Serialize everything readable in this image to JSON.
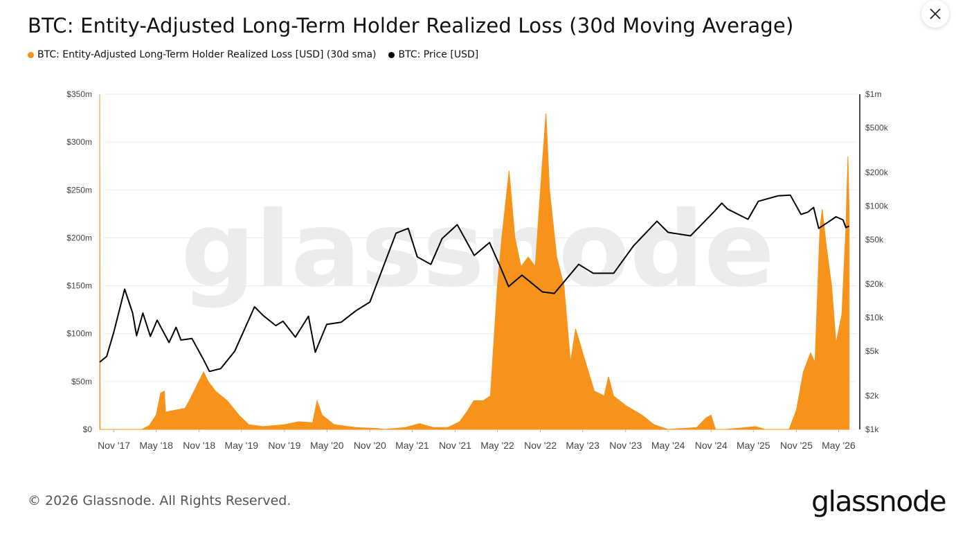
{
  "header": {
    "title": "BTC: Entity-Adjusted Long-Term Holder Realized Loss (30d Moving Average)",
    "close_icon": "close-icon"
  },
  "legend": [
    {
      "label": "BTC: Entity-Adjusted Long-Term Holder Realized Loss [USD] (30d sma)",
      "color": "#f7931a"
    },
    {
      "label": "BTC: Price [USD]",
      "color": "#000000"
    }
  ],
  "footer": {
    "copyright": "© 2026 Glassnode. All Rights Reserved.",
    "logo": "glassnode"
  },
  "chart_data": {
    "type": "area",
    "title": "BTC: Entity-Adjusted Long-Term Holder Realized Loss (30d Moving Average)",
    "watermark": "glassnode",
    "x_range": [
      "2017-09-01",
      "2026-07-01"
    ],
    "x_ticks": [
      "Nov '17",
      "May '18",
      "Nov '18",
      "May '19",
      "Nov '19",
      "May '20",
      "Nov '20",
      "May '21",
      "Nov '21",
      "May '22",
      "Nov '22",
      "May '23",
      "Nov '23",
      "May '24",
      "Nov '24",
      "May '25",
      "Nov '25",
      "May '26"
    ],
    "x_tick_dates": [
      "2017-11-01",
      "2018-05-01",
      "2018-11-01",
      "2019-05-01",
      "2019-11-01",
      "2020-05-01",
      "2020-11-01",
      "2021-05-01",
      "2021-11-01",
      "2022-05-01",
      "2022-11-01",
      "2023-05-01",
      "2023-11-01",
      "2024-05-01",
      "2024-11-01",
      "2025-05-01",
      "2025-11-01",
      "2026-05-01"
    ],
    "y_left": {
      "ticks": [
        "$0",
        "$50m",
        "$100m",
        "$150m",
        "$200m",
        "$250m",
        "$300m",
        "$350m"
      ],
      "tick_values": [
        0,
        50,
        100,
        150,
        200,
        250,
        300,
        350
      ],
      "ylim": [
        0,
        350
      ],
      "unit": "USD millions"
    },
    "y_right": {
      "scale": "log",
      "ticks": [
        "$1k",
        "$2k",
        "$5k",
        "$10k",
        "$20k",
        "$50k",
        "$100k",
        "$200k",
        "$500k",
        "$1m"
      ],
      "tick_values": [
        1000,
        2000,
        5000,
        10000,
        20000,
        50000,
        100000,
        200000,
        500000,
        1000000
      ],
      "ylim": [
        1000,
        1000000
      ]
    },
    "grid": true,
    "series": [
      {
        "name": "BTC: Entity-Adjusted Long-Term Holder Realized Loss [USD] (30d sma)",
        "color": "#f7931a",
        "axis": "left",
        "type": "area",
        "points": [
          [
            "2017-09-01",
            350
          ],
          [
            "2017-09-03",
            0
          ],
          [
            "2018-03-01",
            0
          ],
          [
            "2018-04-01",
            4
          ],
          [
            "2018-05-01",
            15
          ],
          [
            "2018-05-20",
            38
          ],
          [
            "2018-06-05",
            40
          ],
          [
            "2018-06-10",
            18
          ],
          [
            "2018-07-20",
            20
          ],
          [
            "2018-09-01",
            22
          ],
          [
            "2018-09-20",
            30
          ],
          [
            "2018-10-20",
            45
          ],
          [
            "2018-11-20",
            60
          ],
          [
            "2018-12-10",
            50
          ],
          [
            "2019-01-10",
            40
          ],
          [
            "2019-03-01",
            30
          ],
          [
            "2019-04-20",
            15
          ],
          [
            "2019-06-01",
            5
          ],
          [
            "2019-08-01",
            3
          ],
          [
            "2019-11-01",
            5
          ],
          [
            "2020-01-01",
            8
          ],
          [
            "2020-03-01",
            7
          ],
          [
            "2020-03-20",
            30
          ],
          [
            "2020-04-10",
            15
          ],
          [
            "2020-06-01",
            5
          ],
          [
            "2020-09-01",
            2
          ],
          [
            "2020-12-01",
            1
          ],
          [
            "2021-01-01",
            0
          ],
          [
            "2021-04-01",
            2
          ],
          [
            "2021-06-01",
            6
          ],
          [
            "2021-08-01",
            2
          ],
          [
            "2021-10-01",
            2
          ],
          [
            "2021-11-20",
            8
          ],
          [
            "2021-12-20",
            18
          ],
          [
            "2022-01-20",
            30
          ],
          [
            "2022-03-01",
            30
          ],
          [
            "2022-04-01",
            35
          ],
          [
            "2022-05-01",
            150
          ],
          [
            "2022-05-20",
            200
          ],
          [
            "2022-06-20",
            270
          ],
          [
            "2022-07-15",
            200
          ],
          [
            "2022-08-10",
            170
          ],
          [
            "2022-09-10",
            180
          ],
          [
            "2022-10-10",
            170
          ],
          [
            "2022-11-10",
            280
          ],
          [
            "2022-11-25",
            330
          ],
          [
            "2022-12-10",
            250
          ],
          [
            "2023-01-10",
            180
          ],
          [
            "2023-02-10",
            150
          ],
          [
            "2023-03-10",
            70
          ],
          [
            "2023-04-01",
            105
          ],
          [
            "2023-05-01",
            80
          ],
          [
            "2023-06-20",
            40
          ],
          [
            "2023-08-01",
            35
          ],
          [
            "2023-08-20",
            55
          ],
          [
            "2023-09-10",
            35
          ],
          [
            "2023-11-01",
            25
          ],
          [
            "2024-01-10",
            15
          ],
          [
            "2024-03-01",
            5
          ],
          [
            "2024-05-01",
            0
          ],
          [
            "2024-09-01",
            2
          ],
          [
            "2024-10-10",
            12
          ],
          [
            "2024-11-01",
            15
          ],
          [
            "2024-11-20",
            0
          ],
          [
            "2025-01-01",
            0
          ],
          [
            "2025-04-01",
            2
          ],
          [
            "2025-05-10",
            3
          ],
          [
            "2025-06-20",
            0
          ],
          [
            "2025-10-01",
            0
          ],
          [
            "2025-11-01",
            20
          ],
          [
            "2025-12-01",
            60
          ],
          [
            "2026-01-01",
            80
          ],
          [
            "2026-01-20",
            70
          ],
          [
            "2026-02-10",
            210
          ],
          [
            "2026-02-20",
            230
          ],
          [
            "2026-03-10",
            190
          ],
          [
            "2026-04-01",
            150
          ],
          [
            "2026-04-20",
            90
          ],
          [
            "2026-05-15",
            120
          ],
          [
            "2026-06-01",
            210
          ],
          [
            "2026-06-10",
            285
          ],
          [
            "2026-06-15",
            230
          ]
        ]
      },
      {
        "name": "BTC: Price [USD]",
        "color": "#000000",
        "axis": "right",
        "type": "line",
        "points": [
          [
            "2017-09-01",
            4000
          ],
          [
            "2017-10-01",
            4500
          ],
          [
            "2017-11-01",
            7500
          ],
          [
            "2017-12-17",
            18000
          ],
          [
            "2018-01-20",
            11000
          ],
          [
            "2018-02-06",
            6900
          ],
          [
            "2018-03-05",
            11000
          ],
          [
            "2018-04-06",
            6800
          ],
          [
            "2018-05-05",
            9500
          ],
          [
            "2018-06-25",
            6000
          ],
          [
            "2018-07-25",
            8200
          ],
          [
            "2018-08-15",
            6300
          ],
          [
            "2018-10-01",
            6500
          ],
          [
            "2018-11-20",
            4200
          ],
          [
            "2018-12-15",
            3300
          ],
          [
            "2019-02-01",
            3500
          ],
          [
            "2019-04-02",
            5000
          ],
          [
            "2019-06-26",
            12500
          ],
          [
            "2019-08-01",
            10500
          ],
          [
            "2019-09-25",
            8500
          ],
          [
            "2019-10-26",
            9300
          ],
          [
            "2019-12-18",
            6700
          ],
          [
            "2020-02-12",
            10300
          ],
          [
            "2020-03-12",
            4900
          ],
          [
            "2020-04-30",
            8700
          ],
          [
            "2020-07-01",
            9100
          ],
          [
            "2020-09-01",
            11500
          ],
          [
            "2020-11-01",
            13800
          ],
          [
            "2020-12-27",
            28000
          ],
          [
            "2021-02-21",
            57000
          ],
          [
            "2021-04-14",
            63000
          ],
          [
            "2021-05-23",
            35000
          ],
          [
            "2021-07-20",
            30000
          ],
          [
            "2021-09-06",
            51000
          ],
          [
            "2021-11-10",
            68000
          ],
          [
            "2022-01-22",
            36000
          ],
          [
            "2022-03-28",
            47000
          ],
          [
            "2022-05-12",
            29000
          ],
          [
            "2022-06-18",
            19000
          ],
          [
            "2022-08-14",
            24000
          ],
          [
            "2022-11-10",
            17000
          ],
          [
            "2022-12-31",
            16500
          ],
          [
            "2023-04-14",
            30000
          ],
          [
            "2023-06-15",
            25000
          ],
          [
            "2023-09-11",
            25000
          ],
          [
            "2023-12-05",
            44000
          ],
          [
            "2024-03-14",
            73000
          ],
          [
            "2024-05-01",
            58000
          ],
          [
            "2024-08-05",
            54000
          ],
          [
            "2024-11-12",
            88000
          ],
          [
            "2024-12-17",
            106000
          ],
          [
            "2025-01-10",
            94000
          ],
          [
            "2025-04-08",
            76000
          ],
          [
            "2025-05-22",
            110000
          ],
          [
            "2025-08-14",
            123000
          ],
          [
            "2025-10-06",
            125000
          ],
          [
            "2025-11-21",
            84000
          ],
          [
            "2025-12-20",
            88000
          ],
          [
            "2026-01-14",
            97000
          ],
          [
            "2026-02-05",
            63000
          ],
          [
            "2026-03-10",
            70000
          ],
          [
            "2026-04-20",
            80000
          ],
          [
            "2026-05-20",
            75000
          ],
          [
            "2026-06-01",
            64000
          ],
          [
            "2026-06-15",
            66000
          ]
        ]
      }
    ]
  }
}
